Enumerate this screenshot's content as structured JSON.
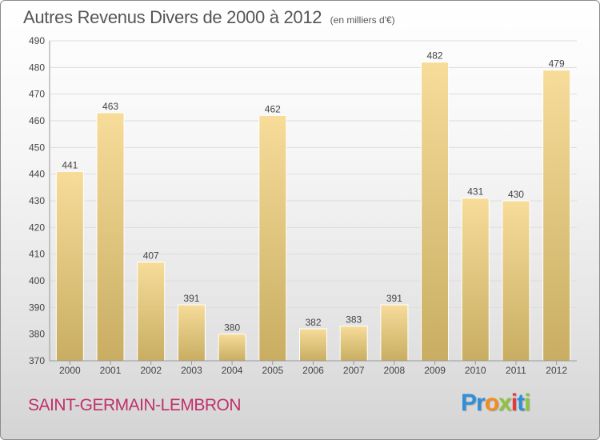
{
  "header": {
    "title": "Autres Revenus Divers de 2000 à 2012",
    "subtitle": "(en milliers d'€)"
  },
  "footer": {
    "commune": "SAINT-GERMAIN-LEMBRON",
    "brand_letters": [
      {
        "char": "P",
        "color": "#2f8fd8"
      },
      {
        "char": "r",
        "color": "#2f8fd8"
      },
      {
        "char": "o",
        "color": "#f28c1e"
      },
      {
        "char": "x",
        "color": "#8cc43c"
      },
      {
        "char": "i",
        "color": "#e03a3a"
      },
      {
        "char": "t",
        "color": "#2f8fd8"
      },
      {
        "char": "i",
        "color": "#8cc43c"
      }
    ]
  },
  "colors": {
    "bar_light": "#f7dc9a",
    "bar_dark": "#c8ad62",
    "grid": "#dddddd",
    "axis": "#999999",
    "text": "#444444",
    "commune": "#c0306a"
  },
  "chart_data": {
    "type": "bar",
    "categories": [
      "2000",
      "2001",
      "2002",
      "2003",
      "2004",
      "2005",
      "2006",
      "2007",
      "2008",
      "2009",
      "2010",
      "2011",
      "2012"
    ],
    "values": [
      441,
      463,
      407,
      391,
      380,
      462,
      382,
      383,
      391,
      482,
      431,
      430,
      479
    ],
    "data_labels": [
      "441",
      "463",
      "407",
      "391",
      "380",
      "462",
      "382",
      "383",
      "391",
      "482",
      "431",
      "430",
      "479"
    ],
    "title": "Autres Revenus Divers de 2000 à 2012",
    "subtitle": "(en milliers d'€)",
    "xlabel": "",
    "ylabel": "",
    "ylim": [
      370,
      490
    ],
    "yticks": [
      370,
      380,
      390,
      400,
      410,
      420,
      430,
      440,
      450,
      460,
      470,
      480,
      490
    ],
    "grid": true,
    "legend": "none"
  }
}
